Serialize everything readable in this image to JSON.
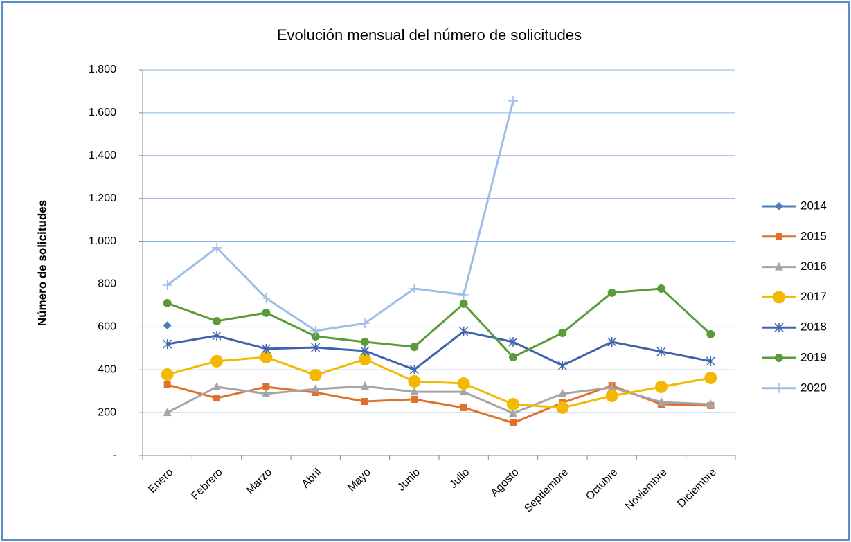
{
  "chart_data": {
    "type": "line",
    "title": "Evolución mensual del número de solicitudes",
    "y_label": "Número de solicitudes",
    "categories": [
      "Enero",
      "Febrero",
      "Marzo",
      "Abril",
      "Mayo",
      "Junio",
      "Julio",
      "Agosto",
      "Septiembre",
      "Octubre",
      "Noviembre",
      "Diciembre"
    ],
    "ylim": [
      0,
      1800
    ],
    "yticks": [
      {
        "value": 0,
        "label": "-"
      },
      200,
      400,
      600,
      800,
      {
        "value": 1000,
        "label": "1.000"
      },
      {
        "value": 1200,
        "label": "1.200"
      },
      {
        "value": 1400,
        "label": "1.400"
      },
      {
        "value": 1600,
        "label": "1.600"
      },
      {
        "value": 1800,
        "label": "1.800"
      }
    ],
    "grid": true,
    "legend": "right",
    "series": [
      {
        "name": "2014",
        "color": "#4a7ebb",
        "marker": "diamond",
        "values": [
          607,
          null,
          null,
          null,
          null,
          null,
          null,
          null,
          null,
          null,
          null,
          null
        ]
      },
      {
        "name": "2015",
        "color": "#e0702c",
        "marker": "square",
        "values": [
          330,
          268,
          320,
          294,
          252,
          262,
          223,
          152,
          246,
          326,
          239,
          233
        ]
      },
      {
        "name": "2016",
        "color": "#a5a5a5",
        "marker": "triangle",
        "values": [
          200,
          320,
          288,
          310,
          323,
          297,
          297,
          197,
          288,
          317,
          249,
          239
        ]
      },
      {
        "name": "2017",
        "color": "#f5b800",
        "marker": "bigcircle",
        "values": [
          378,
          440,
          459,
          375,
          449,
          346,
          336,
          239,
          223,
          278,
          320,
          362
        ]
      },
      {
        "name": "2018",
        "color": "#3f62ad",
        "marker": "star",
        "values": [
          520,
          559,
          498,
          504,
          488,
          401,
          579,
          530,
          420,
          530,
          485,
          440
        ]
      },
      {
        "name": "2019",
        "color": "#5b9a38",
        "marker": "circle",
        "values": [
          711,
          627,
          666,
          556,
          530,
          507,
          708,
          459,
          572,
          760,
          779,
          566
        ]
      },
      {
        "name": "2020",
        "color": "#9dbde8",
        "marker": "plus",
        "values": [
          795,
          970,
          734,
          582,
          617,
          779,
          750,
          1655,
          null,
          null,
          null,
          null
        ]
      }
    ]
  }
}
